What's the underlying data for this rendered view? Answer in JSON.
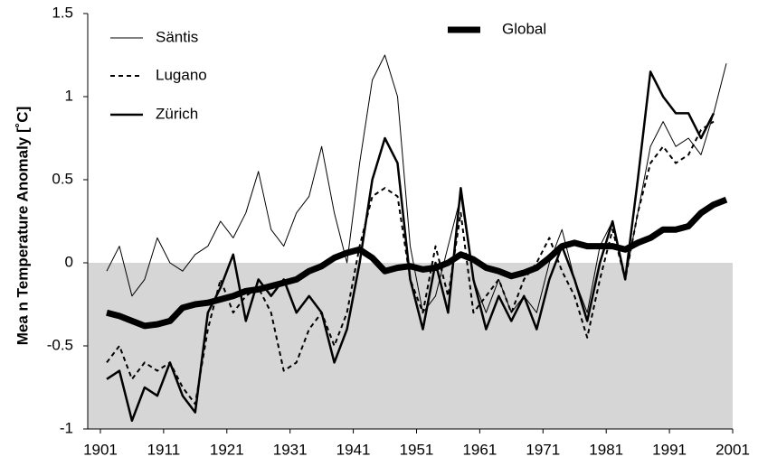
{
  "chart_data": {
    "type": "line",
    "ylabel": "Mea n Temperature Anomaly [˚C]",
    "xlim": [
      1899,
      2001
    ],
    "xticks": [
      1901,
      1911,
      1921,
      1931,
      1941,
      1951,
      1961,
      1971,
      1981,
      1991,
      2001
    ],
    "ylim": [
      -1,
      1.5
    ],
    "yticks": [
      -1,
      -0.5,
      0,
      0.5,
      1,
      1.5
    ],
    "shade_below_zero": "#d6d6d6",
    "x": [
      1902,
      1904,
      1906,
      1908,
      1910,
      1912,
      1914,
      1916,
      1918,
      1920,
      1922,
      1924,
      1926,
      1928,
      1930,
      1932,
      1934,
      1936,
      1938,
      1940,
      1942,
      1944,
      1946,
      1948,
      1950,
      1952,
      1954,
      1956,
      1958,
      1960,
      1962,
      1964,
      1966,
      1968,
      1970,
      1972,
      1974,
      1976,
      1978,
      1980,
      1982,
      1984,
      1986,
      1988,
      1990,
      1992,
      1994,
      1996,
      1998,
      2000
    ],
    "series": [
      {
        "name": "Säntis",
        "color": "#000000",
        "line_width": 1,
        "dash": false,
        "values": [
          -0.05,
          0.1,
          -0.2,
          -0.1,
          0.15,
          0.0,
          -0.05,
          0.05,
          0.1,
          0.25,
          0.15,
          0.3,
          0.55,
          0.2,
          0.1,
          0.3,
          0.4,
          0.7,
          0.3,
          0.0,
          0.6,
          1.1,
          1.25,
          1.0,
          0.1,
          -0.3,
          -0.2,
          0.1,
          0.4,
          -0.1,
          -0.3,
          -0.1,
          -0.3,
          -0.2,
          -0.3,
          0.0,
          0.2,
          -0.1,
          -0.3,
          0.1,
          0.25,
          -0.1,
          0.3,
          0.7,
          0.85,
          0.7,
          0.75,
          0.65,
          0.9,
          1.2
        ]
      },
      {
        "name": "Lugano",
        "color": "#000000",
        "line_width": 2,
        "dash": true,
        "values": [
          -0.6,
          -0.5,
          -0.7,
          -0.6,
          -0.65,
          -0.6,
          -0.75,
          -0.85,
          -0.4,
          -0.1,
          -0.3,
          -0.2,
          -0.15,
          -0.3,
          -0.65,
          -0.6,
          -0.4,
          -0.3,
          -0.5,
          -0.3,
          0.1,
          0.4,
          0.45,
          0.4,
          -0.1,
          -0.3,
          0.1,
          -0.2,
          0.3,
          -0.3,
          -0.2,
          -0.1,
          -0.3,
          -0.1,
          0.0,
          0.15,
          -0.05,
          -0.2,
          -0.45,
          -0.1,
          0.2,
          -0.1,
          0.3,
          0.6,
          0.7,
          0.6,
          0.65,
          0.8,
          0.85,
          null
        ]
      },
      {
        "name": "Zürich",
        "color": "#000000",
        "line_width": 2.5,
        "dash": false,
        "values": [
          -0.7,
          -0.65,
          -0.95,
          -0.75,
          -0.8,
          -0.6,
          -0.8,
          -0.9,
          -0.3,
          -0.15,
          0.05,
          -0.35,
          -0.1,
          -0.2,
          -0.1,
          -0.3,
          -0.2,
          -0.3,
          -0.6,
          -0.4,
          0.0,
          0.5,
          0.75,
          0.6,
          -0.1,
          -0.4,
          0.0,
          -0.3,
          0.45,
          -0.1,
          -0.4,
          -0.2,
          -0.35,
          -0.2,
          -0.4,
          -0.1,
          0.1,
          -0.1,
          -0.35,
          0.0,
          0.25,
          -0.1,
          0.5,
          1.15,
          1.0,
          0.9,
          0.9,
          0.75,
          0.9,
          null
        ]
      },
      {
        "name": "Global",
        "color": "#000000",
        "line_width": 7,
        "dash": false,
        "values": [
          -0.3,
          -0.32,
          -0.35,
          -0.38,
          -0.37,
          -0.35,
          -0.27,
          -0.25,
          -0.24,
          -0.22,
          -0.2,
          -0.17,
          -0.16,
          -0.14,
          -0.12,
          -0.1,
          -0.05,
          -0.02,
          0.03,
          0.06,
          0.08,
          0.03,
          -0.05,
          -0.03,
          -0.02,
          -0.04,
          -0.03,
          0.0,
          0.05,
          0.02,
          -0.03,
          -0.05,
          -0.08,
          -0.06,
          -0.03,
          0.03,
          0.1,
          0.12,
          0.1,
          0.1,
          0.1,
          0.08,
          0.12,
          0.15,
          0.2,
          0.2,
          0.22,
          0.3,
          0.35,
          0.38
        ]
      }
    ]
  }
}
